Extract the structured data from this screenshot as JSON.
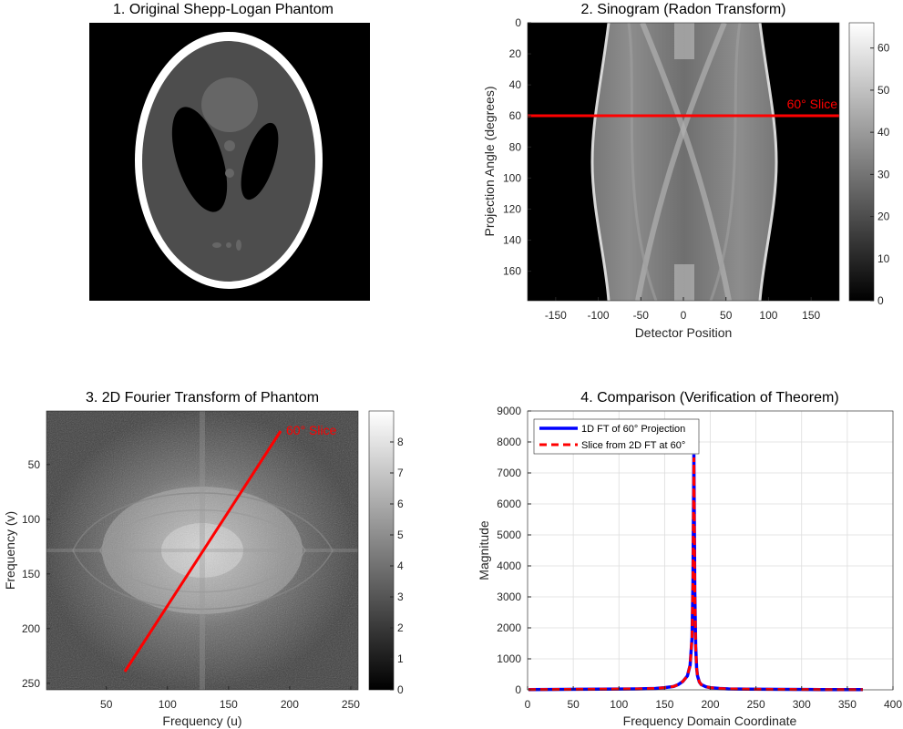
{
  "figure": {
    "panel1": {
      "title": "1. Original Shepp-Logan Phantom"
    },
    "panel2": {
      "title": "2. Sinogram (Radon Transform)",
      "xlabel": "Detector Position",
      "ylabel": "Projection Angle (degrees)",
      "xticks": [
        "-150",
        "-100",
        "-50",
        "0",
        "50",
        "100",
        "150"
      ],
      "yticks": [
        "0",
        "20",
        "40",
        "60",
        "80",
        "100",
        "120",
        "140",
        "160"
      ],
      "cbar_ticks": [
        "0",
        "10",
        "20",
        "30",
        "40",
        "50",
        "60"
      ],
      "annotation": "60° Slice",
      "line_color": "#ff0000"
    },
    "panel3": {
      "title": "3. 2D Fourier Transform of Phantom",
      "xlabel": "Frequency (u)",
      "ylabel": "Frequency (v)",
      "xticks": [
        "50",
        "100",
        "150",
        "200",
        "250"
      ],
      "yticks": [
        "50",
        "100",
        "150",
        "200",
        "250"
      ],
      "cbar_ticks": [
        "0",
        "1",
        "2",
        "3",
        "4",
        "5",
        "6",
        "7",
        "8"
      ],
      "annotation": "60° Slice",
      "line_color": "#ff0000"
    },
    "panel4": {
      "title": "4. Comparison (Verification of Theorem)",
      "xlabel": "Frequency Domain Coordinate",
      "ylabel": "Magnitude",
      "xticks": [
        "0",
        "50",
        "100",
        "150",
        "200",
        "250",
        "300",
        "350",
        "400"
      ],
      "yticks": [
        "0",
        "1000",
        "2000",
        "3000",
        "4000",
        "5000",
        "6000",
        "7000",
        "8000",
        "9000"
      ],
      "legend": [
        "1D FT of 60° Projection",
        "Slice from 2D FT at 60°"
      ],
      "colors": {
        "series1": "#0000ff",
        "series2": "#ff0000"
      }
    }
  },
  "chart_data": [
    {
      "type": "image",
      "title": "1. Original Shepp-Logan Phantom",
      "colormap": "gray"
    },
    {
      "type": "heatmap",
      "title": "2. Sinogram (Radon Transform)",
      "xlabel": "Detector Position",
      "ylabel": "Projection Angle (degrees)",
      "xlim": [
        -183,
        183
      ],
      "ylim": [
        0,
        179
      ],
      "colorbar_range": [
        0,
        66
      ],
      "colormap": "gray",
      "annotations": [
        {
          "text": "60° Slice",
          "type": "horizontal_line",
          "y": 60
        }
      ]
    },
    {
      "type": "heatmap",
      "title": "3. 2D Fourier Transform of Phantom",
      "xlabel": "Frequency (u)",
      "ylabel": "Frequency (v)",
      "xlim": [
        1,
        256
      ],
      "ylim": [
        1,
        256
      ],
      "colorbar_range": [
        0,
        9
      ],
      "colormap": "gray",
      "annotations": [
        {
          "text": "60° Slice",
          "type": "line",
          "from": [
            65,
            240
          ],
          "to": [
            192,
            17
          ]
        }
      ]
    },
    {
      "type": "line",
      "title": "4. Comparison (Verification of Theorem)",
      "xlabel": "Frequency Domain Coordinate",
      "ylabel": "Magnitude",
      "xlim": [
        0,
        400
      ],
      "ylim": [
        0,
        9000
      ],
      "grid": true,
      "legend_position": "top-left",
      "series": [
        {
          "name": "1D FT of 60° Projection",
          "x": [
            1,
            40,
            80,
            120,
            140,
            150,
            160,
            165,
            170,
            175,
            178,
            180,
            181,
            182,
            183,
            184,
            185,
            186,
            188,
            190,
            195,
            200,
            210,
            220,
            240,
            280,
            320,
            367
          ],
          "y": [
            10,
            15,
            20,
            30,
            45,
            70,
            110,
            170,
            270,
            450,
            800,
            1700,
            3500,
            7600,
            3200,
            1400,
            700,
            450,
            250,
            170,
            100,
            70,
            45,
            30,
            20,
            15,
            10,
            10
          ]
        },
        {
          "name": "Slice from 2D FT at 60°",
          "x": [
            1,
            40,
            80,
            120,
            140,
            150,
            160,
            165,
            170,
            175,
            178,
            180,
            181,
            182,
            183,
            184,
            185,
            186,
            188,
            190,
            195,
            200,
            210,
            220,
            240,
            280,
            320,
            367
          ],
          "y": [
            10,
            15,
            20,
            30,
            45,
            70,
            110,
            170,
            270,
            450,
            800,
            1700,
            3500,
            7500,
            3200,
            1400,
            700,
            450,
            250,
            170,
            100,
            70,
            45,
            30,
            20,
            15,
            10,
            10
          ]
        }
      ]
    }
  ]
}
